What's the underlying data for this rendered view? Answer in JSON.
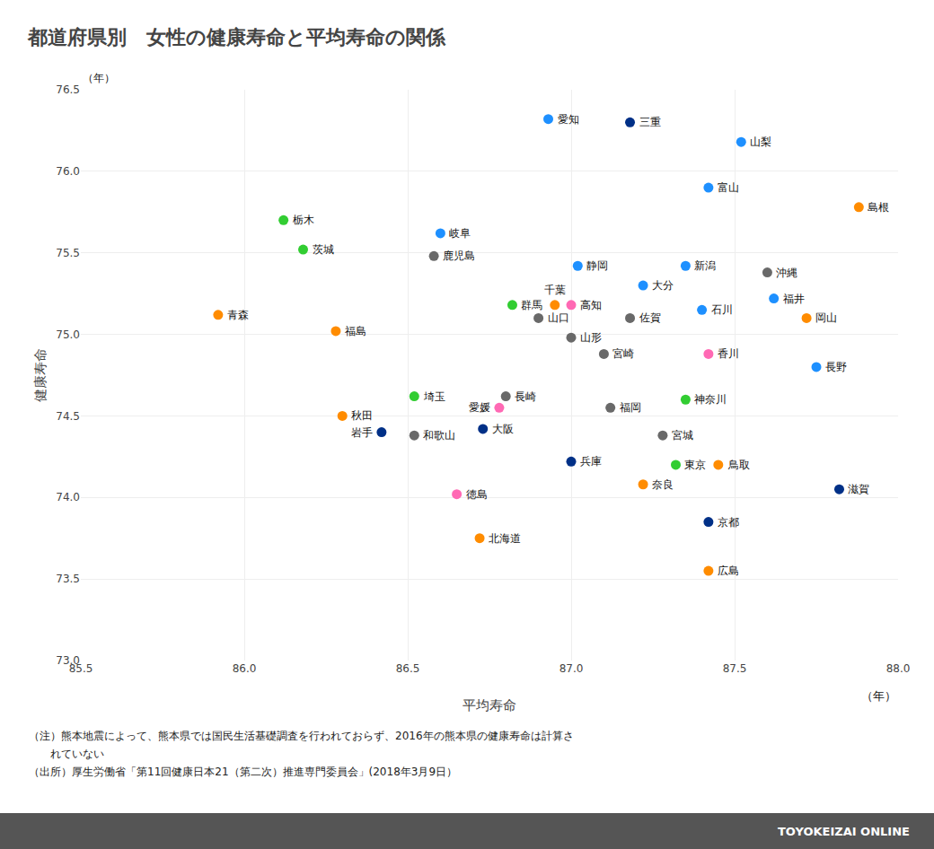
{
  "chart_data": {
    "type": "scatter",
    "title": "都道府県別　女性の健康寿命と平均寿命の関係",
    "xlabel": "平均寿命",
    "ylabel": "健康寿命",
    "x_unit": "（年）",
    "y_unit": "（年）",
    "xlim": [
      85.5,
      88.0
    ],
    "ylim": [
      73.0,
      76.5
    ],
    "xticks": [
      85.5,
      {
        "value": 86.0,
        "label": "86.0"
      },
      86.5,
      {
        "value": 87.0,
        "label": "87.0"
      },
      87.5,
      {
        "value": 88.0,
        "label": "88.0"
      }
    ],
    "yticks": [
      {
        "value": 73.0,
        "label": "73.0"
      },
      73.5,
      {
        "value": 74.0,
        "label": "74.0"
      },
      74.5,
      {
        "value": 75.0,
        "label": "75.0"
      },
      75.5,
      {
        "value": 76.0,
        "label": "76.0"
      },
      76.5
    ],
    "grid": true,
    "labels": [
      "愛知",
      "三重",
      "山梨",
      "富山",
      "島根",
      "栃木",
      "岐阜",
      "茨城",
      "鹿児島",
      "静岡",
      "新潟",
      "沖縄",
      "大分",
      "群馬",
      "千葉",
      "高知",
      "石川",
      "福井",
      "青森",
      "山口",
      "佐賀",
      "岡山",
      "福島",
      "山形",
      "宮崎",
      "香川",
      "長野",
      "埼玉",
      "長崎",
      "神奈川",
      "愛媛",
      "福岡",
      "秋田",
      "岩手",
      "和歌山",
      "大阪",
      "宮城",
      "兵庫",
      "東京",
      "鳥取",
      "奈良",
      "滋賀",
      "徳島",
      "京都",
      "北海道",
      "広島"
    ],
    "x": [
      86.93,
      87.18,
      87.52,
      87.42,
      87.88,
      86.12,
      86.6,
      86.18,
      86.58,
      87.02,
      87.35,
      87.6,
      87.22,
      86.82,
      86.95,
      87.0,
      87.4,
      87.62,
      85.92,
      86.9,
      87.18,
      87.72,
      86.28,
      87.0,
      87.1,
      87.42,
      87.75,
      86.52,
      86.8,
      87.35,
      86.78,
      87.12,
      86.3,
      86.42,
      86.52,
      86.73,
      87.28,
      87.0,
      87.32,
      87.45,
      87.22,
      87.82,
      86.65,
      87.42,
      86.72,
      87.42
    ],
    "values": [
      76.32,
      76.3,
      76.18,
      75.9,
      75.78,
      75.7,
      75.62,
      75.52,
      75.48,
      75.42,
      75.42,
      75.38,
      75.3,
      75.18,
      75.18,
      75.18,
      75.15,
      75.22,
      75.12,
      75.1,
      75.1,
      75.1,
      75.02,
      74.98,
      74.88,
      74.88,
      74.8,
      74.62,
      74.62,
      74.6,
      74.55,
      74.55,
      74.5,
      74.4,
      74.38,
      74.42,
      74.38,
      74.22,
      74.2,
      74.2,
      74.08,
      74.05,
      74.02,
      73.85,
      73.75,
      73.55
    ],
    "colors": [
      "#1e90ff",
      "#003087",
      "#1e90ff",
      "#1e90ff",
      "#ff8c00",
      "#32cd32",
      "#1e90ff",
      "#32cd32",
      "#696969",
      "#1e90ff",
      "#1e90ff",
      "#696969",
      "#1e90ff",
      "#32cd32",
      "#ff8c00",
      "#ff69b4",
      "#1e90ff",
      "#1e90ff",
      "#ff8c00",
      "#696969",
      "#696969",
      "#ff8c00",
      "#ff8c00",
      "#696969",
      "#696969",
      "#ff69b4",
      "#1e90ff",
      "#32cd32",
      "#696969",
      "#32cd32",
      "#ff69b4",
      "#696969",
      "#ff8c00",
      "#003087",
      "#696969",
      "#003087",
      "#696969",
      "#003087",
      "#32cd32",
      "#ff8c00",
      "#ff8c00",
      "#003087",
      "#ff69b4",
      "#003087",
      "#ff8c00",
      "#ff8c00"
    ],
    "notes": [
      "（注）熊本地震によって、熊本県では国民生活基礎調査を行われておらず、2016年の熊本県の健康寿命は計算さ",
      "　　れていない",
      "（出所）厚生労働省「第11回健康日本21（第二次）推進専門委員会」(2018年3月9日）"
    ],
    "watermark": "TOYOKEIZAI ONLINE"
  }
}
